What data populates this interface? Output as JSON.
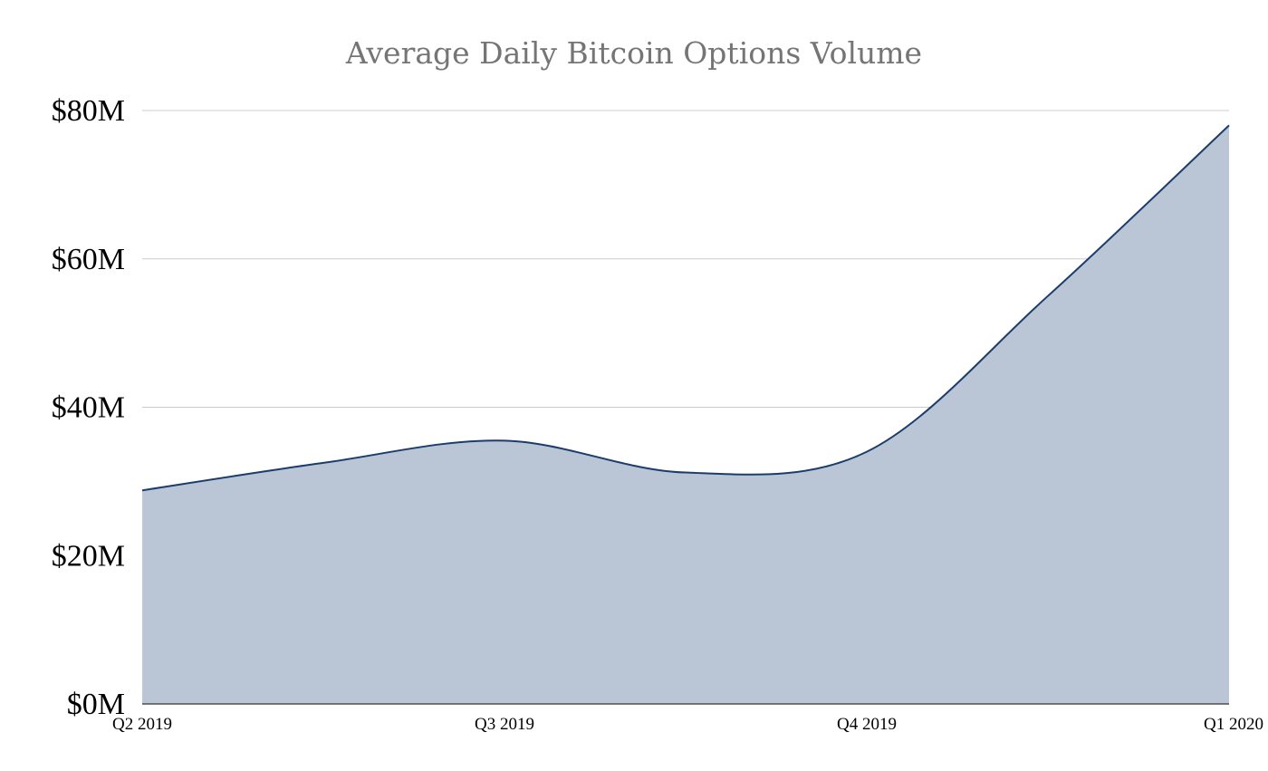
{
  "chart_data": {
    "type": "area",
    "title": "Average Daily Bitcoin Options Volume",
    "xlabel": "",
    "ylabel": "",
    "categories": [
      "Q2 2019",
      "Q3 2019",
      "Q4 2019",
      "Q1 2020"
    ],
    "series": [
      {
        "x": [
          0,
          0.5,
          1,
          1.5,
          2,
          2.5,
          3
        ],
        "values": [
          28.8,
          32.5,
          35.5,
          31.2,
          34,
          55,
          78
        ]
      }
    ],
    "yticks": [
      "$0M",
      "$20M",
      "$40M",
      "$60M",
      "$80M"
    ],
    "ylim": [
      0,
      80
    ],
    "grid": true,
    "legend": "none",
    "colors": {
      "fill": "#bac6d5",
      "line": "#1b3d6d",
      "grid": "#cccccc",
      "axis": "#333333",
      "title": "#757575"
    }
  }
}
